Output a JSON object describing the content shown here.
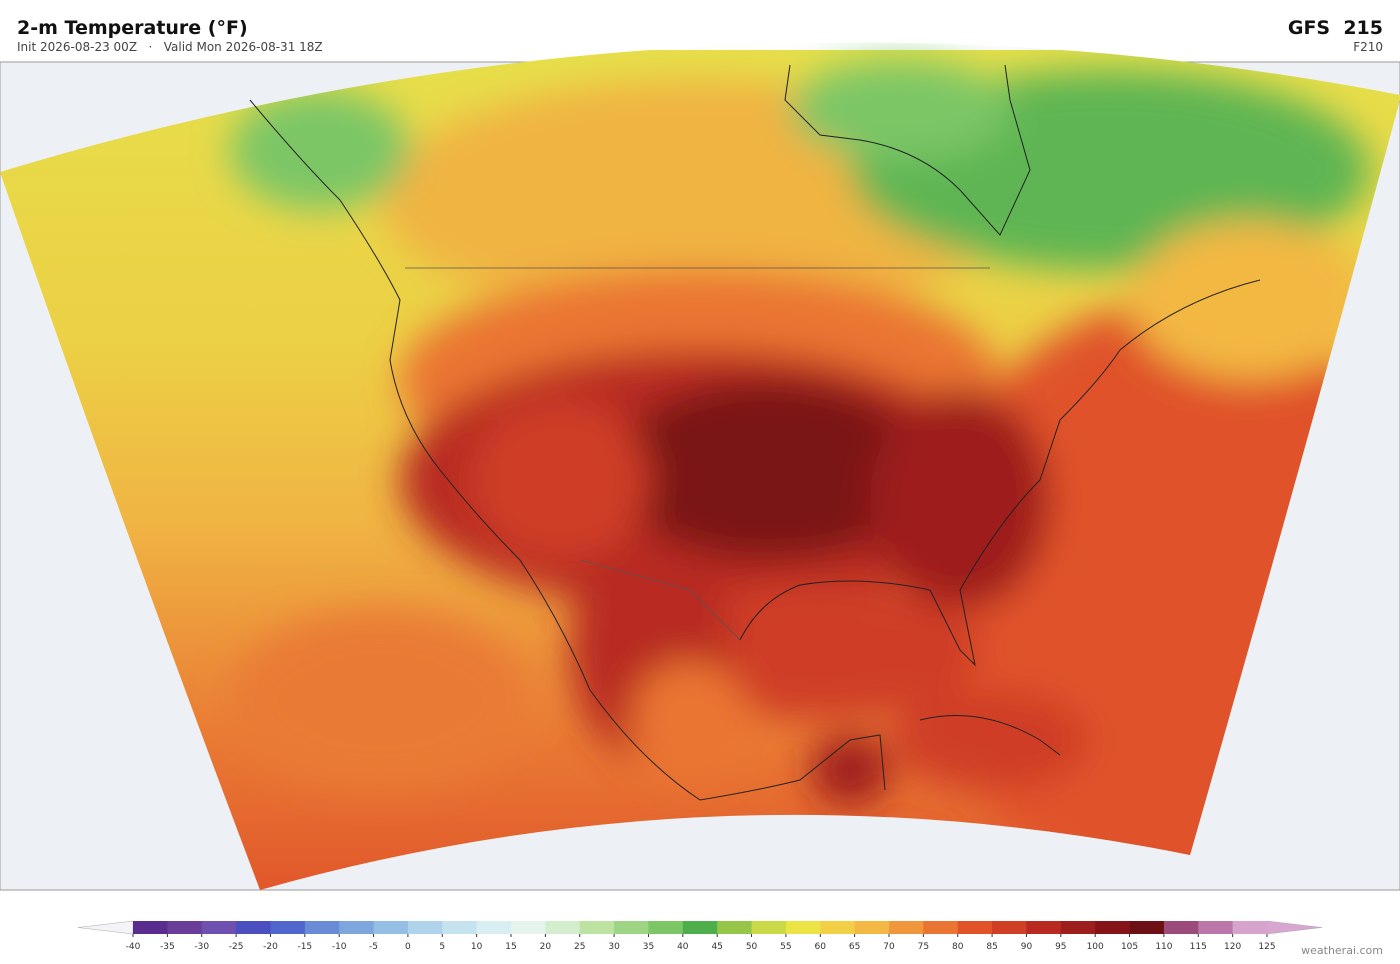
{
  "header": {
    "title": "2-m Temperature  (°F)",
    "subtitle": "Init 2026-08-23 00Z   ·   Valid Mon 2026-08-31 18Z",
    "model": "GFS  215",
    "forecast_hour": "F210"
  },
  "colorbar": {
    "ticks": [
      -40,
      -35,
      -30,
      -25,
      -20,
      -15,
      -10,
      -5,
      0,
      5,
      10,
      15,
      20,
      25,
      30,
      35,
      40,
      45,
      50,
      55,
      60,
      65,
      70,
      75,
      80,
      85,
      90,
      95,
      100,
      105,
      110,
      115,
      120,
      125
    ],
    "colors": [
      "#5b2c8f",
      "#6a3d9a",
      "#6f4fb0",
      "#4b4fbf",
      "#5166cc",
      "#6a8bd6",
      "#7ea6dc",
      "#94bee3",
      "#aed3ea",
      "#c4e3ef",
      "#d8eef2",
      "#e6f4ee",
      "#d4edcc",
      "#bde3a2",
      "#9dd585",
      "#7cc666",
      "#4fae4c",
      "#95c64a",
      "#c9d947",
      "#ece344",
      "#f3cf45",
      "#f3b843",
      "#f0963c",
      "#ea7532",
      "#e0532a",
      "#cf3e25",
      "#b82a21",
      "#9e1d1d",
      "#851418",
      "#6d1015",
      "#9b4a7a",
      "#bb77aa",
      "#d5a3cc"
    ],
    "under_color": "#f4f4f8",
    "over_color": "#d8a6d0"
  },
  "watermark": "weatherai.com"
}
